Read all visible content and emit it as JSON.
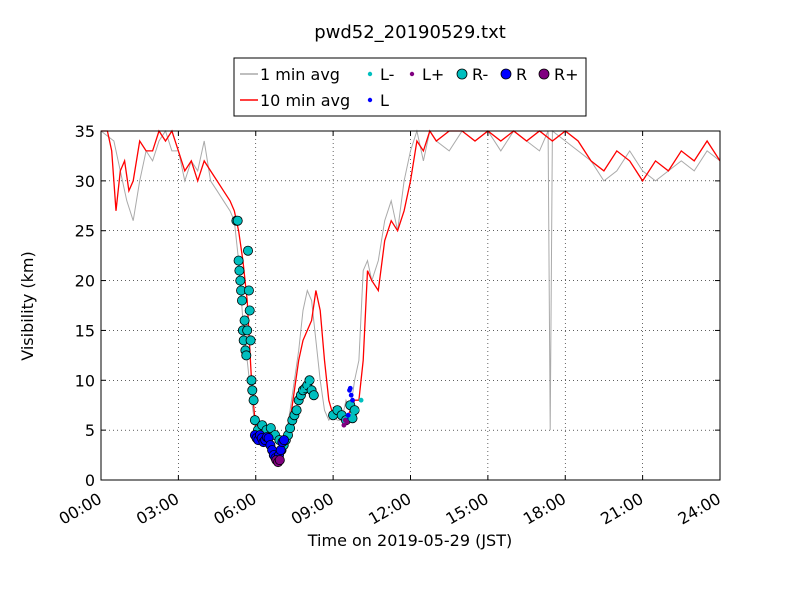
{
  "chart_data": {
    "type": "line",
    "title": "pwd52_20190529.txt",
    "xlabel": "Time on 2019-05-29 (JST)",
    "ylabel": "Visibility (km)",
    "xlim": [
      "00:00",
      "24:00"
    ],
    "ylim": [
      0,
      35
    ],
    "xticks": [
      "00:00",
      "03:00",
      "06:00",
      "09:00",
      "12:00",
      "15:00",
      "18:00",
      "21:00",
      "24:00"
    ],
    "yticks": [
      "0",
      "5",
      "10",
      "15",
      "20",
      "25",
      "30",
      "35"
    ],
    "grid": true,
    "legend_position": "top-center",
    "legend": [
      "1 min avg",
      "10 min avg",
      "L-",
      "L",
      "L+",
      "R-",
      "R",
      "R+"
    ],
    "colors": {
      "1 min avg": "#aaaaaa",
      "10 min avg": "#ff0000",
      "L-": "#00bfbf",
      "L": "#0000ff",
      "L+": "#800080",
      "R-": "#00bfbf",
      "R": "#0000ff",
      "R+": "#800080"
    },
    "series": [
      {
        "name": "1 min avg",
        "type": "line",
        "x": [
          "00:00",
          "00:30",
          "00:45",
          "01:00",
          "01:15",
          "01:30",
          "01:45",
          "02:00",
          "02:15",
          "02:30",
          "02:45",
          "03:00",
          "03:15",
          "03:30",
          "03:45",
          "04:00",
          "04:15",
          "04:30",
          "04:45",
          "05:00",
          "05:10",
          "05:20",
          "05:30",
          "05:40",
          "05:50",
          "06:00",
          "06:10",
          "06:20",
          "06:30",
          "06:40",
          "06:50",
          "07:00",
          "07:10",
          "07:20",
          "07:30",
          "07:40",
          "07:50",
          "08:00",
          "08:10",
          "08:20",
          "08:30",
          "08:40",
          "08:50",
          "09:00",
          "09:10",
          "09:20",
          "09:30",
          "09:40",
          "09:50",
          "10:00",
          "10:10",
          "10:20",
          "10:30",
          "10:45",
          "11:00",
          "11:15",
          "11:30",
          "11:45",
          "12:00",
          "12:15",
          "12:30",
          "12:45",
          "13:00",
          "13:30",
          "14:00",
          "14:30",
          "15:00",
          "15:30",
          "16:00",
          "16:30",
          "17:00",
          "17:20",
          "17:25",
          "17:30",
          "18:00",
          "18:30",
          "19:00",
          "19:30",
          "20:00",
          "20:30",
          "21:00",
          "21:30",
          "22:00",
          "22:30",
          "23:00",
          "23:30",
          "24:00"
        ],
        "y": [
          35,
          34,
          31,
          28,
          26,
          30,
          33,
          32,
          34,
          35,
          33,
          33,
          30,
          32,
          31,
          34,
          30,
          29,
          28,
          27,
          26,
          22,
          16,
          12,
          8,
          5,
          4.5,
          4,
          3.5,
          3,
          2.2,
          2.5,
          4.5,
          7,
          10,
          13,
          17,
          19,
          18,
          14,
          10,
          7,
          6,
          6.5,
          6,
          6,
          8,
          7,
          10,
          12,
          21,
          22,
          20,
          22,
          26,
          28,
          25,
          30,
          33,
          35,
          32,
          35,
          34,
          33,
          35,
          34,
          35,
          33,
          35,
          34,
          33,
          35,
          5,
          35,
          34,
          33,
          32,
          30,
          31,
          33,
          31,
          30,
          31,
          32,
          31,
          33,
          32
        ]
      },
      {
        "name": "10 min avg",
        "type": "line",
        "x": [
          "00:00",
          "00:15",
          "00:25",
          "00:35",
          "00:45",
          "00:55",
          "01:05",
          "01:15",
          "01:30",
          "01:45",
          "02:00",
          "02:15",
          "02:30",
          "02:45",
          "03:00",
          "03:15",
          "03:30",
          "03:45",
          "04:00",
          "04:15",
          "04:30",
          "04:45",
          "05:00",
          "05:10",
          "05:20",
          "05:30",
          "05:40",
          "05:50",
          "06:00",
          "06:10",
          "06:20",
          "06:30",
          "06:40",
          "06:50",
          "07:00",
          "07:10",
          "07:20",
          "07:30",
          "07:40",
          "07:50",
          "08:00",
          "08:10",
          "08:20",
          "08:30",
          "08:40",
          "08:50",
          "09:00",
          "09:10",
          "09:20",
          "09:30",
          "09:40",
          "09:50",
          "10:00",
          "10:10",
          "10:20",
          "10:30",
          "10:45",
          "11:00",
          "11:15",
          "11:30",
          "11:45",
          "12:00",
          "12:15",
          "12:30",
          "12:45",
          "13:00",
          "13:30",
          "14:00",
          "14:30",
          "15:00",
          "15:30",
          "16:00",
          "16:30",
          "17:00",
          "17:30",
          "18:00",
          "18:30",
          "19:00",
          "19:30",
          "20:00",
          "20:30",
          "21:00",
          "21:30",
          "22:00",
          "22:30",
          "23:00",
          "23:30",
          "24:00"
        ],
        "y": [
          35,
          35,
          33,
          27,
          31,
          32,
          29,
          30,
          34,
          33,
          33,
          35,
          34,
          35,
          33,
          31,
          32,
          30,
          32,
          31,
          30,
          29,
          28,
          27,
          25,
          22,
          18,
          10,
          5,
          4.5,
          4,
          3.5,
          3,
          2.5,
          2.5,
          4,
          6,
          9,
          12,
          14,
          15,
          16,
          19,
          17,
          12,
          8,
          6.5,
          6.5,
          6,
          6,
          7,
          8,
          8,
          12,
          21,
          20,
          19,
          24,
          26,
          25,
          27,
          30,
          34,
          33,
          35,
          34,
          35,
          35,
          34,
          35,
          34,
          35,
          34,
          35,
          34,
          35,
          34,
          32,
          31,
          33,
          32,
          30,
          32,
          31,
          33,
          32,
          34,
          32
        ]
      },
      {
        "name": "R-",
        "type": "scatter",
        "x": [
          "05:15",
          "05:18",
          "05:20",
          "05:22",
          "05:24",
          "05:26",
          "05:28",
          "05:30",
          "05:32",
          "05:34",
          "05:36",
          "05:38",
          "05:40",
          "05:42",
          "05:44",
          "05:46",
          "05:48",
          "05:50",
          "05:52",
          "05:55",
          "05:58",
          "06:05",
          "06:15",
          "06:25",
          "06:35",
          "06:45",
          "06:55",
          "07:00",
          "07:05",
          "07:10",
          "07:15",
          "07:20",
          "07:25",
          "07:30",
          "07:35",
          "07:40",
          "07:45",
          "07:50",
          "07:55",
          "08:00",
          "08:05",
          "08:10",
          "08:15",
          "09:00",
          "09:10",
          "09:20",
          "09:30",
          "09:40",
          "09:45",
          "09:50"
        ],
        "y": [
          26,
          26,
          22,
          21,
          20,
          19,
          18,
          15,
          14,
          16,
          13,
          12.5,
          15,
          23,
          19,
          17,
          14,
          10,
          9,
          8,
          6,
          5,
          5.5,
          5,
          5.2,
          4.5,
          4,
          3,
          3.5,
          4,
          4.5,
          5.2,
          6,
          6.5,
          7,
          8,
          8.5,
          9,
          9.2,
          9.5,
          10,
          9,
          8.5,
          6.5,
          7,
          6.5,
          6,
          7.5,
          6.2,
          7
        ]
      },
      {
        "name": "L-",
        "type": "scatter",
        "x": [
          "07:50",
          "08:00",
          "08:10",
          "09:45",
          "09:55",
          "10:05"
        ],
        "y": [
          9,
          9.5,
          10,
          6.5,
          7,
          8
        ]
      },
      {
        "name": "R",
        "type": "scatter",
        "x": [
          "05:58",
          "06:02",
          "06:06",
          "06:10",
          "06:14",
          "06:18",
          "06:22",
          "06:26",
          "06:30",
          "06:34",
          "06:38",
          "06:42",
          "06:46",
          "06:50",
          "06:54",
          "06:58",
          "07:02",
          "07:06"
        ],
        "y": [
          4.5,
          4.2,
          4,
          4.5,
          4.2,
          3.8,
          4,
          4.3,
          4.2,
          3.5,
          3,
          2.5,
          2.2,
          2,
          2.5,
          3,
          3.8,
          4
        ]
      },
      {
        "name": "L",
        "type": "scatter",
        "x": [
          "09:30",
          "09:35",
          "09:38",
          "09:40",
          "09:42",
          "09:45"
        ],
        "y": [
          6,
          6.5,
          9,
          9.2,
          8.5,
          8
        ]
      },
      {
        "name": "L+",
        "type": "scatter",
        "x": [
          "09:25",
          "09:28",
          "09:32"
        ],
        "y": [
          5.5,
          6,
          5.8
        ]
      },
      {
        "name": "R+",
        "type": "scatter",
        "x": [
          "06:48",
          "06:52",
          "06:56"
        ],
        "y": [
          2,
          1.8,
          2
        ]
      }
    ]
  }
}
